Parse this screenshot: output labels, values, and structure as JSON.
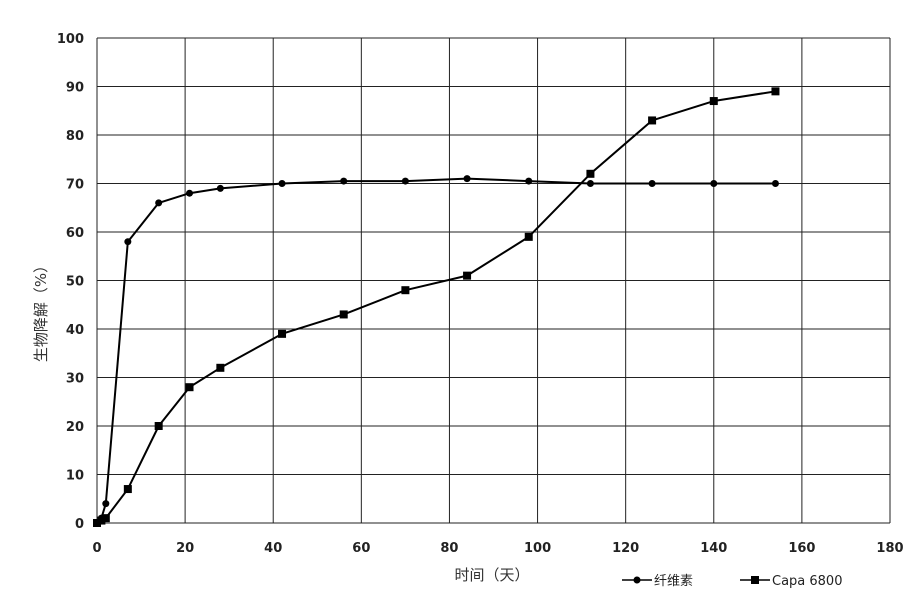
{
  "chart_data": {
    "type": "line",
    "title": "",
    "xlabel": "时间（天）",
    "ylabel": "生物降解（%）",
    "xlim": [
      0,
      180
    ],
    "ylim": [
      0,
      100
    ],
    "x_ticks": [
      0,
      20,
      40,
      60,
      80,
      100,
      120,
      140,
      160,
      180
    ],
    "y_ticks": [
      0,
      10,
      20,
      30,
      40,
      50,
      60,
      70,
      80,
      90,
      100
    ],
    "grid": true,
    "legend_position": "bottom-right",
    "series": [
      {
        "name": "纤维素",
        "marker": "circle",
        "color": "#000000",
        "x": [
          0,
          1,
          2,
          7,
          14,
          21,
          28,
          42,
          56,
          70,
          84,
          98,
          112,
          126,
          140,
          154
        ],
        "y": [
          0,
          1,
          4,
          58,
          66,
          68,
          69,
          70,
          70.5,
          70.5,
          71,
          70.5,
          70,
          70,
          70,
          70
        ]
      },
      {
        "name": "Capa 6800",
        "marker": "square",
        "color": "#000000",
        "x": [
          0,
          1,
          2,
          7,
          14,
          21,
          28,
          42,
          56,
          70,
          84,
          98,
          112,
          126,
          140,
          154
        ],
        "y": [
          0,
          0.5,
          1,
          7,
          20,
          28,
          32,
          39,
          43,
          48,
          51,
          59,
          72,
          83,
          87,
          89
        ]
      }
    ]
  }
}
